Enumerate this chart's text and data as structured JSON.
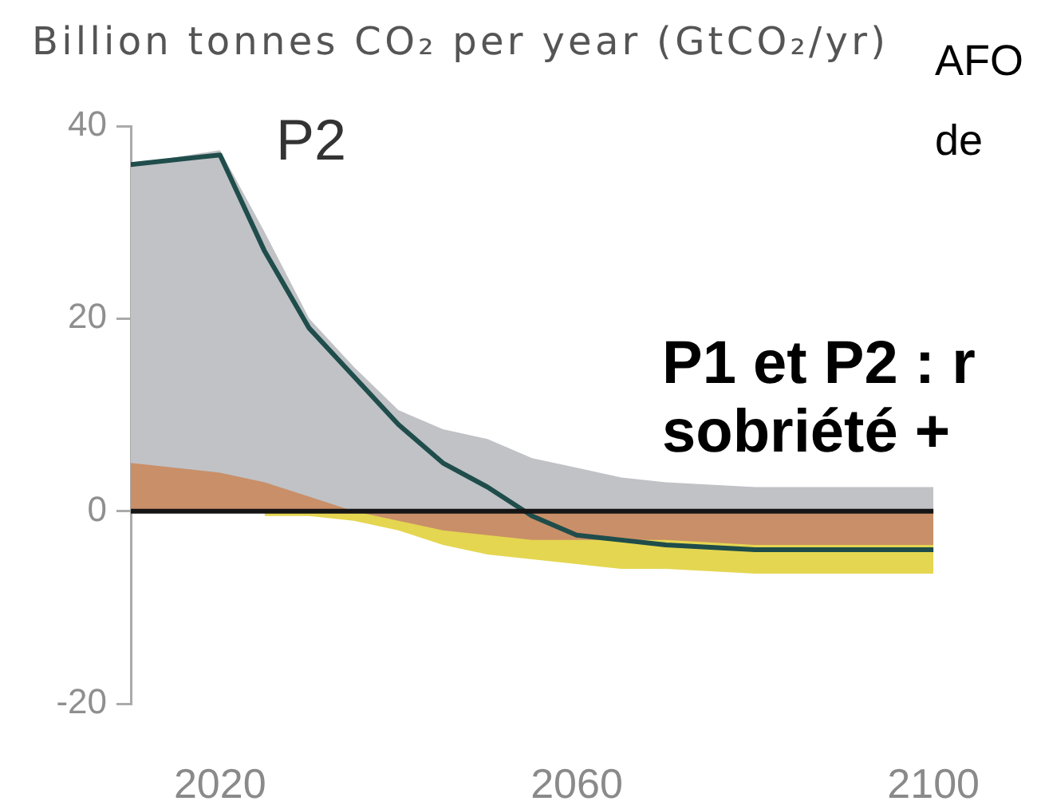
{
  "chart_data": {
    "type": "area",
    "title": "P2",
    "ylabel": "Billion tonnes CO₂ per year (GtCO₂/yr)",
    "annotations": [
      "AFO",
      "de",
      "P1 et P2 : r",
      "sobriété +"
    ],
    "x": [
      2010,
      2020,
      2025,
      2030,
      2035,
      2040,
      2045,
      2050,
      2055,
      2060,
      2065,
      2070,
      2080,
      2090,
      2100
    ],
    "series": [
      {
        "color": "#c98f68",
        "values": [
          5,
          4,
          3,
          1.5,
          0,
          -1,
          -2,
          -2.5,
          -3,
          -3,
          -3,
          -3,
          -3.5,
          -3.5,
          -3.5
        ]
      },
      {
        "color": "#c0c2c6",
        "values": [
          36,
          37.5,
          29,
          20,
          15,
          10.5,
          8.5,
          7.5,
          5.5,
          4.5,
          3.5,
          3,
          2.5,
          2.5,
          2.5
        ]
      },
      {
        "color": "#e4d650",
        "values": [
          null,
          null,
          -0.5,
          -0.5,
          -1,
          -2,
          -3.5,
          -4.5,
          -5,
          -5.5,
          -6,
          -6,
          -6.5,
          -6.5,
          -6.5
        ]
      },
      {
        "type": "line",
        "color": "#1f4d4b",
        "values": [
          36,
          37,
          27,
          19,
          14,
          9,
          5,
          2.5,
          -0.5,
          -2.5,
          -3,
          -3.5,
          -4,
          -4,
          -4
        ]
      }
    ],
    "xlim": [
      2010,
      2100
    ],
    "xticks": [
      2020,
      2060,
      2100
    ],
    "ylim": [
      -20,
      40
    ],
    "yticks": [
      -20,
      0,
      20,
      40
    ],
    "ref_lines": [
      {
        "axis": "y",
        "value": 0,
        "color": "#151515"
      }
    ]
  }
}
